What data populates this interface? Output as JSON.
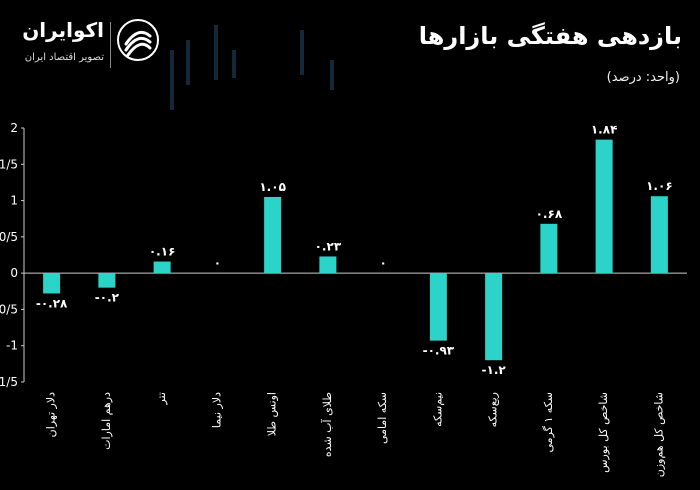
{
  "header": {
    "title": "بازدهی هفتگی بازارها",
    "unit": "(واحد: درصد)"
  },
  "logo": {
    "name": "اکوایران",
    "tagline": "تصویر اقتصاد ایران",
    "icon": "ecoiran-swirl-icon"
  },
  "colors": {
    "background": "#000000",
    "bar": "#2cd3c9",
    "text": "#ffffff"
  },
  "chart_data": {
    "type": "bar",
    "categories": [
      "دلار تهران",
      "درهم امارات",
      "تتر",
      "دلار نیما",
      "اونس طلا",
      "طلای آب شده",
      "سکه امامی",
      "نیم‌سکه",
      "ربع‌سکه",
      "سکه ۱ گرمی",
      "شاخص کل بورس",
      "شاخص کل هم‌وزن"
    ],
    "values": [
      -0.28,
      -0.2,
      0.16,
      0,
      1.05,
      0.23,
      0,
      -0.93,
      -1.2,
      0.68,
      1.84,
      1.06
    ],
    "value_labels": [
      "-۰.۲۸",
      "-۰.۲",
      "۰.۱۶",
      "۰",
      "۱.۰۵",
      "۰.۲۳",
      "۰",
      "-۰.۹۳",
      "-۱.۲",
      "۰.۶۸",
      "۱.۸۴",
      "۱.۰۶"
    ],
    "ylim": [
      -1.5,
      2
    ],
    "yticks": [
      2,
      1.5,
      1,
      0.5,
      0,
      -0.5,
      -1,
      -1.5
    ],
    "ytick_labels": [
      "2",
      "1/5",
      "1",
      "0/5",
      "0",
      "-0/5",
      "-1",
      "-1/5"
    ],
    "grid": false
  }
}
